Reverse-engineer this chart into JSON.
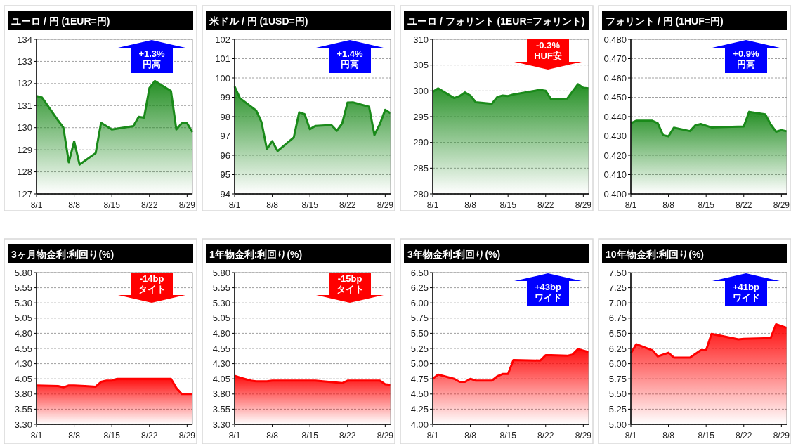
{
  "chart_data": [
    {
      "type": "area",
      "title": "ユーロ / 円 (1EUR=円)",
      "x": [
        "--08-01",
        "--08-02",
        "--08-05",
        "--08-06",
        "--08-07",
        "--08-08",
        "--08-09",
        "--08-12",
        "--08-13",
        "--08-15",
        "--08-19",
        "--08-20",
        "--08-21",
        "--08-22",
        "--08-23",
        "--08-26",
        "--08-27",
        "--08-28",
        "--08-29",
        "--08-30"
      ],
      "series": [
        {
          "color": "#1a8a1a",
          "values": [
            131.43,
            131.37,
            130.33,
            130.0,
            128.43,
            129.38,
            128.33,
            128.85,
            130.22,
            129.92,
            130.07,
            130.49,
            130.45,
            131.8,
            132.11,
            131.66,
            129.92,
            130.2,
            130.2,
            129.8
          ]
        }
      ],
      "ylim": [
        127,
        134
      ],
      "yticks": [
        127,
        128,
        129,
        130,
        131,
        132,
        133,
        134
      ],
      "xlim": [
        "--08-01",
        "--08-30"
      ],
      "xticks": [
        {
          "value": "--08-01",
          "label": "8/1"
        },
        {
          "value": "--08-08",
          "label": "8/8"
        },
        {
          "value": "--08-15",
          "label": "8/15"
        },
        {
          "value": "--08-22",
          "label": "8/22"
        },
        {
          "value": "--08-29",
          "label": "8/29"
        }
      ],
      "grid": "y",
      "annotations": [
        "+1.3%\n円高"
      ]
    },
    {
      "type": "area",
      "title": "米ドル / 円 (1USD=円)",
      "x": [
        "--08-01",
        "--08-02",
        "--08-05",
        "--08-06",
        "--08-07",
        "--08-08",
        "--08-09",
        "--08-12",
        "--08-13",
        "--08-14",
        "--08-15",
        "--08-16",
        "--08-19",
        "--08-20",
        "--08-21",
        "--08-22",
        "--08-23",
        "--08-26",
        "--08-27",
        "--08-28",
        "--08-29",
        "--08-30"
      ],
      "series": [
        {
          "color": "#1a8a1a",
          "values": [
            99.56,
            98.95,
            98.32,
            97.71,
            96.32,
            96.73,
            96.22,
            96.92,
            98.22,
            98.13,
            97.35,
            97.52,
            97.56,
            97.27,
            97.65,
            98.73,
            98.74,
            98.51,
            97.05,
            97.61,
            98.35,
            98.17
          ]
        }
      ],
      "ylim": [
        94,
        102
      ],
      "yticks": [
        94,
        95,
        96,
        97,
        98,
        99,
        100,
        101,
        102
      ],
      "xlim": [
        "--08-01",
        "--08-30"
      ],
      "xticks": [
        {
          "value": "--08-01",
          "label": "8/1"
        },
        {
          "value": "--08-08",
          "label": "8/8"
        },
        {
          "value": "--08-15",
          "label": "8/15"
        },
        {
          "value": "--08-22",
          "label": "8/22"
        },
        {
          "value": "--08-29",
          "label": "8/29"
        }
      ],
      "grid": "y",
      "annotations": [
        "+1.4%\n円高"
      ]
    },
    {
      "type": "area",
      "title": "ユーロ / フォリント (1EUR=フォリント)",
      "x": [
        "--08-01",
        "--08-02",
        "--08-05",
        "--08-06",
        "--08-07",
        "--08-08",
        "--08-09",
        "--08-12",
        "--08-13",
        "--08-14",
        "--08-15",
        "--08-16",
        "--08-21",
        "--08-22",
        "--08-23",
        "--08-26",
        "--08-28",
        "--08-29",
        "--08-30"
      ],
      "series": [
        {
          "color": "#1a8a1a",
          "values": [
            299.8,
            300.5,
            298.6,
            299.0,
            299.7,
            299.1,
            297.8,
            297.5,
            298.8,
            299.1,
            299.0,
            299.3,
            300.2,
            300.0,
            298.4,
            298.5,
            301.3,
            300.6,
            300.5
          ]
        }
      ],
      "ylim": [
        280,
        310
      ],
      "yticks": [
        280,
        285,
        290,
        295,
        300,
        305,
        310
      ],
      "xlim": [
        "--08-01",
        "--08-30"
      ],
      "xticks": [
        {
          "value": "--08-01",
          "label": "8/1"
        },
        {
          "value": "--08-08",
          "label": "8/8"
        },
        {
          "value": "--08-15",
          "label": "8/15"
        },
        {
          "value": "--08-22",
          "label": "8/22"
        },
        {
          "value": "--08-29",
          "label": "8/29"
        }
      ],
      "grid": "y",
      "annotations": [
        "-0.3%\nHUF安"
      ]
    },
    {
      "type": "area",
      "title": "フォリント /  円  (1HUF=円)",
      "x": [
        "--08-01",
        "--08-02",
        "--08-05",
        "--08-06",
        "--08-07",
        "--08-08",
        "--08-09",
        "--08-12",
        "--08-13",
        "--08-14",
        "--08-16",
        "--08-22",
        "--08-23",
        "--08-26",
        "--08-27",
        "--08-28",
        "--08-29",
        "--08-30"
      ],
      "series": [
        {
          "color": "#1a8a1a",
          "values": [
            0.4366,
            0.4379,
            0.4379,
            0.4366,
            0.4304,
            0.4298,
            0.4343,
            0.4325,
            0.4355,
            0.4362,
            0.4344,
            0.4349,
            0.4425,
            0.4412,
            0.436,
            0.4322,
            0.433,
            0.4324
          ]
        }
      ],
      "ylim": [
        0.4,
        0.48
      ],
      "yticks": [
        {
          "value": 0.4,
          "label": "0.400"
        },
        {
          "value": 0.41,
          "label": "0.410"
        },
        {
          "value": 0.42,
          "label": "0.420"
        },
        {
          "value": 0.43,
          "label": "0.430"
        },
        {
          "value": 0.44,
          "label": "0.440"
        },
        {
          "value": 0.45,
          "label": "0.450"
        },
        {
          "value": 0.46,
          "label": "0.460"
        },
        {
          "value": 0.47,
          "label": "0.470"
        },
        {
          "value": 0.48,
          "label": "0.480"
        }
      ],
      "xlim": [
        "--08-01",
        "--08-30"
      ],
      "xticks": [
        {
          "value": "--08-01",
          "label": "8/1"
        },
        {
          "value": "--08-08",
          "label": "8/8"
        },
        {
          "value": "--08-15",
          "label": "8/15"
        },
        {
          "value": "--08-22",
          "label": "8/22"
        },
        {
          "value": "--08-29",
          "label": "8/29"
        }
      ],
      "grid": "y",
      "annotations": [
        "+0.9%\n円高"
      ]
    },
    {
      "type": "area",
      "title": "3ヶ月物金利:利回り(%)",
      "x": [
        "--08-01",
        "--08-05",
        "--08-06",
        "--08-07",
        "--08-08",
        "--08-10",
        "--08-12",
        "--08-13",
        "--08-14",
        "--08-15",
        "--08-16",
        "--08-26",
        "--08-27",
        "--08-28",
        "--08-30"
      ],
      "series": [
        {
          "color": "#ff0000",
          "values": [
            3.94,
            3.93,
            3.91,
            3.94,
            3.94,
            3.93,
            3.92,
            4.0,
            4.02,
            4.02,
            4.05,
            4.05,
            3.9,
            3.8,
            3.8
          ]
        }
      ],
      "ylim": [
        3.3,
        5.8
      ],
      "yticks": [
        {
          "value": 3.3,
          "label": "3.30"
        },
        {
          "value": 3.55,
          "label": "3.55"
        },
        {
          "value": 3.8,
          "label": "3.80"
        },
        {
          "value": 4.05,
          "label": "4.05"
        },
        {
          "value": 4.3,
          "label": "4.30"
        },
        {
          "value": 4.55,
          "label": "4.55"
        },
        {
          "value": 4.8,
          "label": "4.80"
        },
        {
          "value": 5.05,
          "label": "5.05"
        },
        {
          "value": 5.3,
          "label": "5.30"
        },
        {
          "value": 5.55,
          "label": "5.55"
        },
        {
          "value": 5.8,
          "label": "5.80"
        }
      ],
      "xlim": [
        "--08-01",
        "--08-30"
      ],
      "xticks": [
        {
          "value": "--08-01",
          "label": "8/1"
        },
        {
          "value": "--08-08",
          "label": "8/8"
        },
        {
          "value": "--08-15",
          "label": "8/15"
        },
        {
          "value": "--08-22",
          "label": "8/22"
        },
        {
          "value": "--08-29",
          "label": "8/29"
        }
      ],
      "grid": "y",
      "annotations": [
        "-14bp\nタイト"
      ]
    },
    {
      "type": "area",
      "title": "1年物金利:利回り(%)",
      "x": [
        "--08-01",
        "--08-02",
        "--08-04",
        "--08-05",
        "--08-07",
        "--08-08",
        "--08-16",
        "--08-21",
        "--08-22",
        "--08-28",
        "--08-29",
        "--08-30"
      ],
      "series": [
        {
          "color": "#ff0000",
          "values": [
            4.1,
            4.07,
            4.02,
            4.01,
            4.01,
            4.02,
            4.02,
            3.98,
            4.02,
            4.02,
            3.96,
            3.95
          ]
        }
      ],
      "ylim": [
        3.3,
        5.8
      ],
      "yticks": [
        {
          "value": 3.3,
          "label": "3.30"
        },
        {
          "value": 3.55,
          "label": "3.55"
        },
        {
          "value": 3.8,
          "label": "3.80"
        },
        {
          "value": 4.05,
          "label": "4.05"
        },
        {
          "value": 4.3,
          "label": "4.30"
        },
        {
          "value": 4.55,
          "label": "4.55"
        },
        {
          "value": 4.8,
          "label": "4.80"
        },
        {
          "value": 5.05,
          "label": "5.05"
        },
        {
          "value": 5.3,
          "label": "5.30"
        },
        {
          "value": 5.55,
          "label": "5.55"
        },
        {
          "value": 5.8,
          "label": "5.80"
        }
      ],
      "xlim": [
        "--08-01",
        "--08-30"
      ],
      "xticks": [
        {
          "value": "--08-01",
          "label": "8/1"
        },
        {
          "value": "--08-08",
          "label": "8/8"
        },
        {
          "value": "--08-15",
          "label": "8/15"
        },
        {
          "value": "--08-22",
          "label": "8/22"
        },
        {
          "value": "--08-29",
          "label": "8/29"
        }
      ],
      "grid": "y",
      "annotations": [
        "-15bp\nタイト"
      ]
    },
    {
      "type": "area",
      "title": "3年物金利:利回り(%)",
      "x": [
        "--08-01",
        "--08-02",
        "--08-05",
        "--08-06",
        "--08-07",
        "--08-08",
        "--08-09",
        "--08-12",
        "--08-13",
        "--08-14",
        "--08-15",
        "--08-16",
        "--08-21",
        "--08-22",
        "--08-23",
        "--08-26",
        "--08-27",
        "--08-28",
        "--08-30"
      ],
      "series": [
        {
          "color": "#ff0000",
          "values": [
            4.75,
            4.82,
            4.75,
            4.7,
            4.7,
            4.75,
            4.72,
            4.72,
            4.79,
            4.83,
            4.83,
            5.06,
            5.05,
            5.14,
            5.14,
            5.13,
            5.15,
            5.24,
            5.19
          ]
        }
      ],
      "ylim": [
        4.0,
        6.5
      ],
      "yticks": [
        {
          "value": 4,
          "label": "4.00"
        },
        {
          "value": 4.25,
          "label": "4.25"
        },
        {
          "value": 4.5,
          "label": "4.50"
        },
        {
          "value": 4.75,
          "label": "4.75"
        },
        {
          "value": 5,
          "label": "5.00"
        },
        {
          "value": 5.25,
          "label": "5.25"
        },
        {
          "value": 5.5,
          "label": "5.50"
        },
        {
          "value": 5.75,
          "label": "5.75"
        },
        {
          "value": 6,
          "label": "6.00"
        },
        {
          "value": 6.25,
          "label": "6.25"
        },
        {
          "value": 6.5,
          "label": "6.50"
        }
      ],
      "xlim": [
        "--08-01",
        "--08-30"
      ],
      "xticks": [
        {
          "value": "--08-01",
          "label": "8/1"
        },
        {
          "value": "--08-08",
          "label": "8/8"
        },
        {
          "value": "--08-15",
          "label": "8/15"
        },
        {
          "value": "--08-22",
          "label": "8/22"
        },
        {
          "value": "--08-29",
          "label": "8/29"
        }
      ],
      "grid": "y",
      "annotations": [
        "+43bp\nワイド"
      ]
    },
    {
      "type": "area",
      "title": "10年物金利:利回り(%)",
      "x": [
        "--08-01",
        "--08-02",
        "--08-05",
        "--08-06",
        "--08-08",
        "--08-09",
        "--08-12",
        "--08-14",
        "--08-15",
        "--08-16",
        "--08-21",
        "--08-22",
        "--08-27",
        "--08-28",
        "--08-30"
      ],
      "series": [
        {
          "color": "#ff0000",
          "values": [
            6.17,
            6.32,
            6.22,
            6.12,
            6.18,
            6.1,
            6.1,
            6.22,
            6.22,
            6.49,
            6.4,
            6.41,
            6.42,
            6.65,
            6.59
          ]
        }
      ],
      "ylim": [
        5.0,
        7.5
      ],
      "yticks": [
        {
          "value": 5,
          "label": "5.00"
        },
        {
          "value": 5.25,
          "label": "5.25"
        },
        {
          "value": 5.5,
          "label": "5.50"
        },
        {
          "value": 5.75,
          "label": "5.75"
        },
        {
          "value": 6,
          "label": "6.00"
        },
        {
          "value": 6.25,
          "label": "6.25"
        },
        {
          "value": 6.5,
          "label": "6.50"
        },
        {
          "value": 6.75,
          "label": "6.75"
        },
        {
          "value": 7,
          "label": "7.00"
        },
        {
          "value": 7.25,
          "label": "7.25"
        },
        {
          "value": 7.5,
          "label": "7.50"
        }
      ],
      "xlim": [
        "--08-01",
        "--08-30"
      ],
      "xticks": [
        {
          "value": "--08-01",
          "label": "8/1"
        },
        {
          "value": "--08-08",
          "label": "8/8"
        },
        {
          "value": "--08-15",
          "label": "8/15"
        },
        {
          "value": "--08-22",
          "label": "8/22"
        },
        {
          "value": "--08-29",
          "label": "8/29"
        }
      ],
      "grid": "y",
      "annotations": [
        "+41bp\nワイド"
      ]
    }
  ]
}
